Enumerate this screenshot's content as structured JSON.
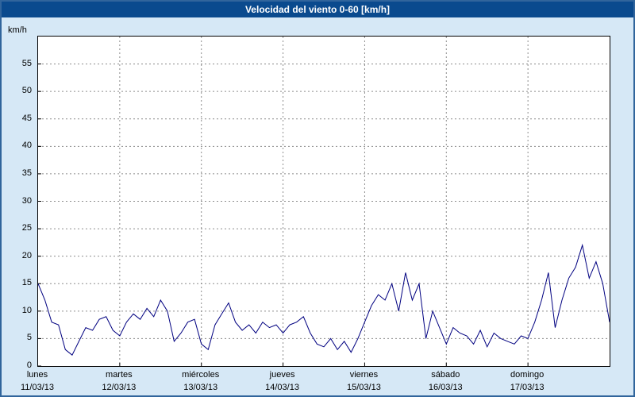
{
  "window": {
    "title": "Velocidad del viento 0-60 [km/h]"
  },
  "colors": {
    "background": "#d6e8f6",
    "titlebar": "#0a4a8e",
    "titlebar_text": "#ffffff",
    "plot_background": "#ffffff",
    "plot_border": "#000000",
    "grid": "#8c8c8c",
    "line": "#000080"
  },
  "chart_data": {
    "type": "line",
    "title": "Velocidad del viento 0-60 [km/h]",
    "ylabel": "km/h",
    "xlabel": "",
    "ylim": [
      0,
      60
    ],
    "yticks": [
      0,
      5,
      10,
      15,
      20,
      25,
      30,
      35,
      40,
      45,
      50,
      55
    ],
    "grid": true,
    "legend_position": "none",
    "sample_interval_hours": 2,
    "days": [
      {
        "name": "lunes",
        "date": "11/03/13"
      },
      {
        "name": "martes",
        "date": "12/03/13"
      },
      {
        "name": "miércoles",
        "date": "13/03/13"
      },
      {
        "name": "jueves",
        "date": "14/03/13"
      },
      {
        "name": "viernes",
        "date": "15/03/13"
      },
      {
        "name": "sábado",
        "date": "16/03/13"
      },
      {
        "name": "domingo",
        "date": "17/03/13"
      }
    ],
    "values": [
      15,
      12,
      8,
      7.5,
      3,
      2,
      4.5,
      7,
      6.5,
      8.5,
      9,
      6.5,
      5.5,
      8,
      9.5,
      8.5,
      10.5,
      9,
      12,
      10,
      4.5,
      6,
      8,
      8.5,
      4,
      3,
      7.5,
      9.5,
      11.5,
      8,
      6.5,
      7.5,
      6,
      8,
      7,
      7.5,
      6,
      7.5,
      8,
      9,
      6,
      4,
      3.5,
      5,
      3,
      4.5,
      2.5,
      5,
      8,
      11,
      13,
      12,
      15,
      10,
      17,
      12,
      15,
      5,
      10,
      7,
      4,
      7,
      6,
      5.5,
      4,
      6.5,
      3.5,
      6,
      5,
      4.5,
      4,
      5.5,
      5,
      8,
      12,
      17,
      7,
      12,
      16,
      18,
      22,
      16,
      19,
      15,
      8
    ]
  }
}
